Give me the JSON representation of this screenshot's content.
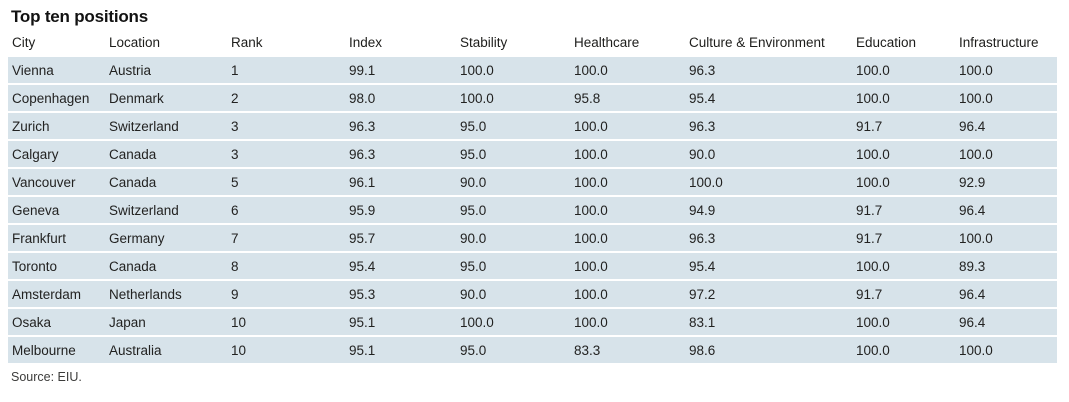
{
  "title": "Top ten positions",
  "source_note": "Source: EIU.",
  "colors": {
    "row_background": "#d7e3ea",
    "text": "#1d1d1b",
    "page_background": "#ffffff"
  },
  "chart_data": {
    "type": "table",
    "title": "Top ten positions",
    "columns": [
      "City",
      "Location",
      "Rank",
      "Index",
      "Stability",
      "Healthcare",
      "Culture & Environment",
      "Education",
      "Infrastructure"
    ],
    "rows": [
      [
        "Vienna",
        "Austria",
        "1",
        "99.1",
        "100.0",
        "100.0",
        "96.3",
        "100.0",
        "100.0"
      ],
      [
        "Copenhagen",
        "Denmark",
        "2",
        "98.0",
        "100.0",
        "95.8",
        "95.4",
        "100.0",
        "100.0"
      ],
      [
        "Zurich",
        "Switzerland",
        "3",
        "96.3",
        "95.0",
        "100.0",
        "96.3",
        "91.7",
        "96.4"
      ],
      [
        "Calgary",
        "Canada",
        "3",
        "96.3",
        "95.0",
        "100.0",
        "90.0",
        "100.0",
        "100.0"
      ],
      [
        "Vancouver",
        "Canada",
        "5",
        "96.1",
        "90.0",
        "100.0",
        "100.0",
        "100.0",
        "92.9"
      ],
      [
        "Geneva",
        "Switzerland",
        "6",
        "95.9",
        "95.0",
        "100.0",
        "94.9",
        "91.7",
        "96.4"
      ],
      [
        "Frankfurt",
        "Germany",
        "7",
        "95.7",
        "90.0",
        "100.0",
        "96.3",
        "91.7",
        "100.0"
      ],
      [
        "Toronto",
        "Canada",
        "8",
        "95.4",
        "95.0",
        "100.0",
        "95.4",
        "100.0",
        "89.3"
      ],
      [
        "Amsterdam",
        "Netherlands",
        "9",
        "95.3",
        "90.0",
        "100.0",
        "97.2",
        "91.7",
        "96.4"
      ],
      [
        "Osaka",
        "Japan",
        "10",
        "95.1",
        "100.0",
        "100.0",
        "83.1",
        "100.0",
        "96.4"
      ],
      [
        "Melbourne",
        "Australia",
        "10",
        "95.1",
        "95.0",
        "83.3",
        "98.6",
        "100.0",
        "100.0"
      ]
    ],
    "source": "Source: EIU."
  }
}
